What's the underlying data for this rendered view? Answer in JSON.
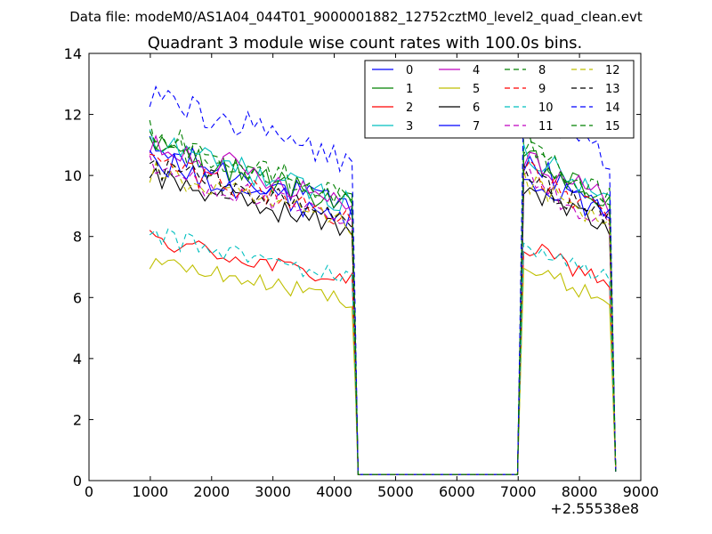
{
  "figure": {
    "suptitle": "Data file: modeM0/AS1A04_044T01_9000001882_12752cztM0_level2_quad_clean.evt"
  },
  "chart_data": {
    "type": "line",
    "title": "Quadrant 3 module wise count rates with 100.0s bins.",
    "xlabel": "",
    "ylabel": "",
    "xlim": [
      0,
      9000
    ],
    "ylim": [
      0,
      14
    ],
    "x_offset_label": "+2.55538e8",
    "xticks": [
      0,
      1000,
      2000,
      3000,
      4000,
      5000,
      6000,
      7000,
      8000,
      9000
    ],
    "yticks": [
      0,
      2,
      4,
      6,
      8,
      10,
      12,
      14
    ],
    "grid": false,
    "legend_placement": "top-right",
    "legend_columns": 4,
    "series": [
      {
        "name": "0",
        "color": "#0000ff",
        "dash": "solid",
        "level": 8.9,
        "drop": 0.2
      },
      {
        "name": "1",
        "color": "#008000",
        "dash": "solid",
        "level": 9.0,
        "drop": 0.2
      },
      {
        "name": "2",
        "color": "#ff0000",
        "dash": "solid",
        "level": 6.5,
        "drop": 0.2
      },
      {
        "name": "3",
        "color": "#00bfbf",
        "dash": "solid",
        "level": 9.1,
        "drop": 0.2
      },
      {
        "name": "4",
        "color": "#bf00bf",
        "dash": "solid",
        "level": 9.1,
        "drop": 0.2
      },
      {
        "name": "5",
        "color": "#bfbf00",
        "dash": "solid",
        "level": 5.9,
        "drop": 0.2
      },
      {
        "name": "6",
        "color": "#000000",
        "dash": "solid",
        "level": 8.2,
        "drop": 0.2
      },
      {
        "name": "7",
        "color": "#0000ff",
        "dash": "solid",
        "level": 8.6,
        "drop": 0.2
      },
      {
        "name": "8",
        "color": "#008000",
        "dash": "dashed",
        "level": 9.3,
        "drop": 0.2
      },
      {
        "name": "9",
        "color": "#ff0000",
        "dash": "dashed",
        "level": 8.6,
        "drop": 0.2
      },
      {
        "name": "10",
        "color": "#00bfbf",
        "dash": "dashed",
        "level": 6.6,
        "drop": 0.2
      },
      {
        "name": "11",
        "color": "#bf00bf",
        "dash": "dashed",
        "level": 8.4,
        "drop": 0.2
      },
      {
        "name": "12",
        "color": "#bfbf00",
        "dash": "dashed",
        "level": 8.3,
        "drop": 0.2
      },
      {
        "name": "13",
        "color": "#000000",
        "dash": "dashed",
        "level": 8.5,
        "drop": 0.2
      },
      {
        "name": "14",
        "color": "#0000ff",
        "dash": "dashed",
        "level": 10.4,
        "drop": 0.2
      },
      {
        "name": "15",
        "color": "#008000",
        "dash": "dashed",
        "level": 9.2,
        "drop": 0.2
      }
    ],
    "segment1": {
      "x_start": 990,
      "x_end": 4290,
      "step": 100,
      "x_gap_start": 4390,
      "x_gap_end": 6990
    },
    "segment2": {
      "x_start": 7090,
      "x_end": 8490,
      "step": 100,
      "x_end_drop": 8590
    }
  }
}
